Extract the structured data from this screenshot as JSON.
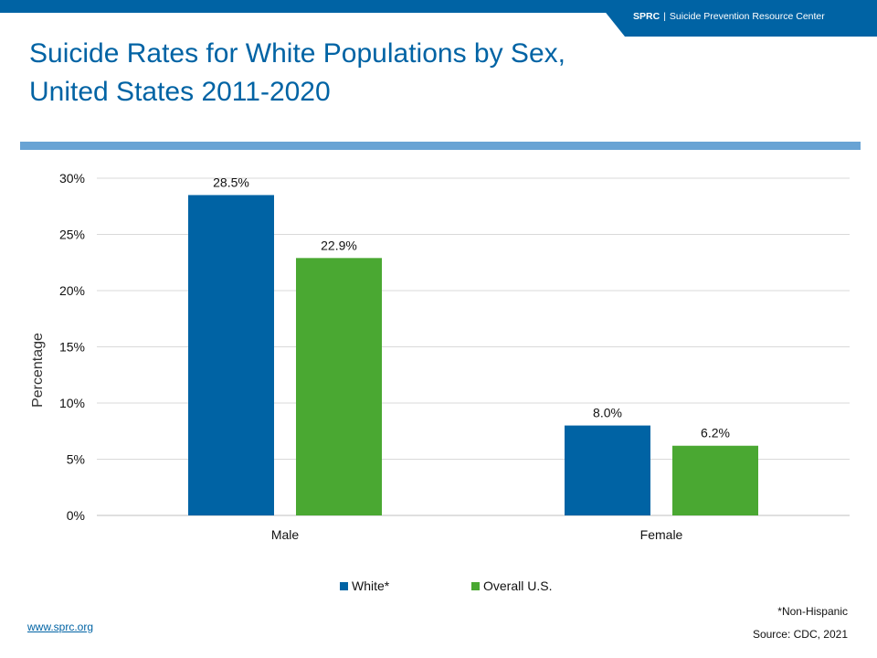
{
  "header": {
    "org_abbr": "SPRC",
    "separator": "|",
    "org_name": "Suicide Prevention Resource Center"
  },
  "title": {
    "line1": "Suicide Rates for White Populations by Sex,",
    "line2": "United States 2011-2020"
  },
  "colors": {
    "brand_blue": "#0063a4",
    "accent_blue": "#68a3d4",
    "white_series": "#0063a4",
    "overall_series": "#4aa832"
  },
  "chart_data": {
    "type": "bar",
    "categories": [
      "Male",
      "Female"
    ],
    "series": [
      {
        "name": "White*",
        "values": [
          28.5,
          8.0
        ],
        "labels": [
          "28.5%",
          "8.0%"
        ]
      },
      {
        "name": "Overall U.S.",
        "values": [
          22.9,
          6.2
        ],
        "labels": [
          "22.9%",
          "6.2%"
        ]
      }
    ],
    "ylabel": "Percentage",
    "ylim": [
      0,
      30
    ],
    "yticks": [
      "0%",
      "5%",
      "10%",
      "15%",
      "20%",
      "25%",
      "30%"
    ],
    "grid": true,
    "legend": "bottom-center"
  },
  "footer": {
    "footnote": "*Non-Hispanic",
    "source": "Source: CDC, 2021",
    "website": "www.sprc.org"
  }
}
